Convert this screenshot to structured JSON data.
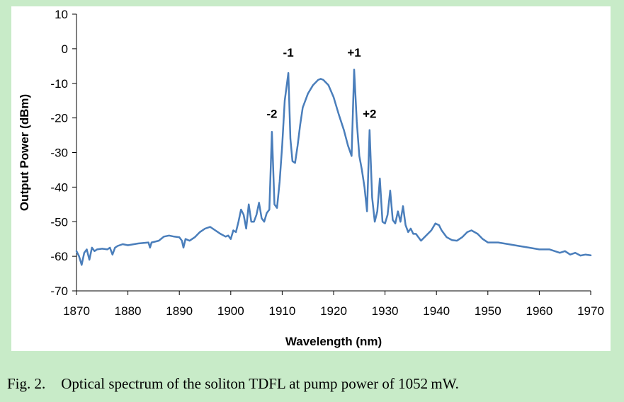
{
  "caption": {
    "label": "Fig. 2.",
    "text": "Optical spectrum of the soliton TDFL at pump power of 1052 mW."
  },
  "chart_data": {
    "type": "line",
    "title": "",
    "xlabel": "Wavelength (nm)",
    "ylabel": "Output Power (dBm)",
    "xlim": [
      1870,
      1970
    ],
    "ylim": [
      -70,
      10
    ],
    "xticks": [
      1870,
      1880,
      1890,
      1900,
      1910,
      1920,
      1930,
      1940,
      1950,
      1960,
      1970
    ],
    "yticks": [
      10,
      0,
      -10,
      -20,
      -30,
      -40,
      -50,
      -60,
      -70
    ],
    "grid": false,
    "line_color": "#4a7ebb",
    "annotations": [
      {
        "text": "-2",
        "x": 1908,
        "y": -20
      },
      {
        "text": "-1",
        "x": 1911.2,
        "y": -2.3
      },
      {
        "text": "+1",
        "x": 1924,
        "y": -2.3
      },
      {
        "text": "+2",
        "x": 1927,
        "y": -20
      }
    ],
    "series": [
      {
        "name": "Optical spectrum",
        "x": [
          1870,
          1870.5,
          1871,
          1871.5,
          1872,
          1872.5,
          1873,
          1873.5,
          1874,
          1875,
          1876,
          1876.5,
          1877,
          1877.5,
          1878,
          1879,
          1880,
          1882,
          1884,
          1884.3,
          1884.6,
          1886,
          1887,
          1888,
          1889,
          1890,
          1890.5,
          1890.8,
          1891.2,
          1892,
          1893,
          1894,
          1895,
          1896,
          1897,
          1898,
          1899,
          1899.5,
          1900,
          1900.5,
          1901,
          1901.5,
          1902,
          1902.5,
          1903,
          1903.5,
          1904,
          1904.5,
          1905,
          1905.5,
          1906,
          1906.5,
          1907,
          1907.5,
          1908,
          1908.5,
          1909,
          1909.5,
          1910,
          1910.5,
          1911.2,
          1911.6,
          1912,
          1912.5,
          1913,
          1913.5,
          1914,
          1915,
          1916,
          1917,
          1917.5,
          1918,
          1919,
          1920,
          1921,
          1922,
          1922.8,
          1923.5,
          1924,
          1924.5,
          1925,
          1925.5,
          1926,
          1926.5,
          1927,
          1927.5,
          1928,
          1928.5,
          1929,
          1929.5,
          1930,
          1930.5,
          1931,
          1931.5,
          1932,
          1932.5,
          1933,
          1933.5,
          1934,
          1934.5,
          1935,
          1935.5,
          1936,
          1936.5,
          1937,
          1938,
          1939,
          1939.8,
          1940.5,
          1941,
          1942,
          1943,
          1944,
          1945,
          1946,
          1946.8,
          1948,
          1949,
          1950,
          1952,
          1954,
          1956,
          1958,
          1960,
          1962,
          1963,
          1964,
          1965,
          1966,
          1967,
          1968,
          1969,
          1970
        ],
        "y": [
          -58.5,
          -60,
          -62.5,
          -59,
          -58,
          -61,
          -57.5,
          -58.5,
          -58,
          -57.8,
          -58,
          -57.5,
          -59.5,
          -57.5,
          -57,
          -56.5,
          -56.8,
          -56.3,
          -56,
          -57.5,
          -56,
          -55.5,
          -54.3,
          -54,
          -54.3,
          -54.5,
          -55.5,
          -57.5,
          -55,
          -55.5,
          -54.5,
          -53,
          -52,
          -51.5,
          -52.5,
          -53.5,
          -54.3,
          -54,
          -55,
          -52.5,
          -53,
          -50,
          -46.5,
          -48,
          -52,
          -45,
          -50,
          -50,
          -48,
          -44.5,
          -49,
          -50,
          -47.5,
          -46.5,
          -24,
          -45,
          -46,
          -38.5,
          -28,
          -15,
          -7,
          -26,
          -32.5,
          -33,
          -28,
          -22,
          -17,
          -13,
          -10.5,
          -9,
          -8.7,
          -9,
          -10.5,
          -14,
          -19,
          -23.5,
          -28,
          -31,
          -6,
          -21,
          -31,
          -35,
          -40,
          -47,
          -23.5,
          -43,
          -50,
          -47,
          -37.5,
          -50,
          -50.5,
          -48,
          -41,
          -49.5,
          -50.5,
          -47,
          -50,
          -45.5,
          -51,
          -53,
          -52,
          -53.5,
          -53.5,
          -54.5,
          -55.5,
          -54,
          -52.5,
          -50.5,
          -51,
          -52.5,
          -54.5,
          -55.3,
          -55.5,
          -54.5,
          -53,
          -52.5,
          -53.5,
          -55,
          -56,
          -56,
          -56.5,
          -57,
          -57.5,
          -58,
          -58,
          -58.5,
          -59,
          -58.5,
          -59.5,
          -59,
          -59.8,
          -59.5,
          -59.7
        ]
      }
    ]
  }
}
